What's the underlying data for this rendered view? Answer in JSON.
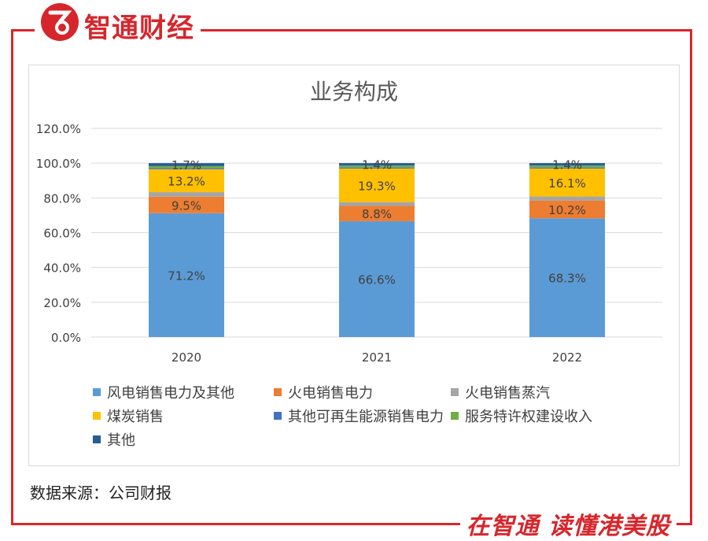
{
  "header": {
    "brand": "智通财经"
  },
  "footer": {
    "source": "数据来源：公司财报",
    "slogan": "在智通  读懂港美股"
  },
  "colors": {
    "brand_red": "#d7262b"
  },
  "chart_data": {
    "type": "bar",
    "stacked": true,
    "title": "业务构成",
    "xlabel": "",
    "ylabel": "",
    "ylim": [
      0,
      120
    ],
    "y_ticks": [
      "0.0%",
      "20.0%",
      "40.0%",
      "60.0%",
      "80.0%",
      "100.0%",
      "120.0%"
    ],
    "categories": [
      "2020",
      "2021",
      "2022"
    ],
    "legend_position": "bottom",
    "grid": true,
    "series": [
      {
        "name": "风电销售电力及其他",
        "color": "#5b9bd5",
        "values": [
          71.2,
          66.6,
          68.3
        ],
        "labels": [
          "71.2%",
          "66.6%",
          "68.3%"
        ]
      },
      {
        "name": "火电销售电力",
        "color": "#ed7d31",
        "values": [
          9.5,
          8.8,
          10.2
        ],
        "labels": [
          "9.5%",
          "8.8%",
          "10.2%"
        ]
      },
      {
        "name": "火电销售蒸汽",
        "color": "#a5a5a5",
        "values": [
          2.6,
          2.2,
          2.3
        ],
        "labels": [
          "",
          "",
          ""
        ]
      },
      {
        "name": "煤炭销售",
        "color": "#ffc000",
        "values": [
          13.2,
          19.3,
          16.1
        ],
        "labels": [
          "13.2%",
          "19.3%",
          "16.1%"
        ]
      },
      {
        "name": "其他可再生能源销售电力",
        "color": "#4472c4",
        "values": [
          0.7,
          0.6,
          0.6
        ],
        "labels": [
          "",
          "",
          ""
        ]
      },
      {
        "name": "服务特许权建设收入",
        "color": "#70ad47",
        "values": [
          1.1,
          1.1,
          1.1
        ],
        "labels": [
          "",
          "",
          ""
        ]
      },
      {
        "name": "其他",
        "color": "#255e91",
        "values": [
          1.7,
          1.4,
          1.4
        ],
        "labels": [
          "1.7%",
          "1.4%",
          "1.4%"
        ]
      }
    ]
  }
}
